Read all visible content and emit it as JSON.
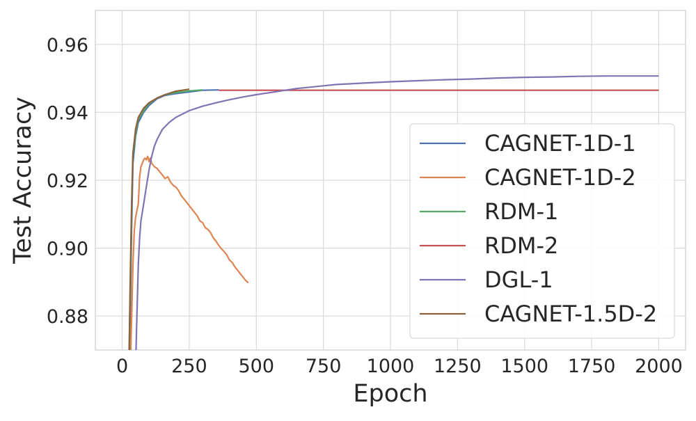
{
  "chart_data": {
    "type": "line",
    "title": "",
    "xlabel": "Epoch",
    "ylabel": "Test Accuracy",
    "xlim": [
      -100,
      2100
    ],
    "ylim": [
      0.87,
      0.97
    ],
    "x_ticks": [
      0,
      250,
      500,
      750,
      1000,
      1250,
      1500,
      1750,
      2000
    ],
    "y_ticks": [
      0.88,
      0.9,
      0.92,
      0.94,
      0.96
    ],
    "x_tick_labels": [
      "0",
      "250",
      "500",
      "750",
      "1000",
      "1250",
      "1500",
      "1750",
      "2000"
    ],
    "y_tick_labels": [
      "0.88",
      "0.90",
      "0.92",
      "0.94",
      "0.96"
    ],
    "grid": true,
    "legend_position": "center-right",
    "series": [
      {
        "name": "CAGNET-1D-1",
        "color": "#4c72b0",
        "x": [
          25,
          30,
          35,
          40,
          50,
          60,
          80,
          100,
          130,
          160,
          200,
          250,
          300,
          360
        ],
        "y": [
          0.865,
          0.88,
          0.905,
          0.925,
          0.933,
          0.937,
          0.94,
          0.942,
          0.944,
          0.945,
          0.9455,
          0.946,
          0.9465,
          0.9466
        ]
      },
      {
        "name": "CAGNET-1D-2",
        "color": "#dd8452",
        "x": [
          28,
          32,
          36,
          40,
          45,
          50,
          55,
          60,
          65,
          70,
          75,
          80,
          85,
          90,
          95,
          100,
          105,
          110,
          120,
          130,
          140,
          150,
          160,
          170,
          180,
          190,
          200,
          210,
          220,
          230,
          240,
          250,
          260,
          270,
          280,
          290,
          300,
          310,
          320,
          330,
          340,
          350,
          360,
          370,
          380,
          390,
          400,
          410,
          420,
          430,
          440,
          450,
          460,
          470
        ],
        "y": [
          0.865,
          0.87,
          0.882,
          0.895,
          0.905,
          0.909,
          0.911,
          0.913,
          0.921,
          0.924,
          0.925,
          0.926,
          0.9265,
          0.926,
          0.927,
          0.9255,
          0.9265,
          0.925,
          0.924,
          0.9235,
          0.9225,
          0.9215,
          0.9205,
          0.921,
          0.9195,
          0.9185,
          0.918,
          0.917,
          0.9155,
          0.9145,
          0.9135,
          0.9125,
          0.9115,
          0.9105,
          0.9095,
          0.908,
          0.9075,
          0.906,
          0.9055,
          0.9045,
          0.903,
          0.902,
          0.9008,
          0.8998,
          0.899,
          0.898,
          0.8965,
          0.8958,
          0.8945,
          0.8935,
          0.8925,
          0.8915,
          0.8905,
          0.8898
        ]
      },
      {
        "name": "RDM-1",
        "color": "#55a868",
        "x": [
          25,
          30,
          35,
          40,
          50,
          60,
          80,
          100,
          130,
          160,
          200,
          250,
          300
        ],
        "y": [
          0.865,
          0.885,
          0.91,
          0.927,
          0.934,
          0.938,
          0.9405,
          0.9425,
          0.9442,
          0.9452,
          0.9458,
          0.9463,
          0.9466
        ]
      },
      {
        "name": "RDM-2",
        "color": "#c44e52",
        "x": [
          360,
          500,
          750,
          1000,
          1250,
          1500,
          1750,
          2000
        ],
        "y": [
          0.9465,
          0.9465,
          0.9465,
          0.9465,
          0.9465,
          0.9465,
          0.9465,
          0.9465
        ]
      },
      {
        "name": "DGL-1",
        "color": "#8172b3",
        "x": [
          50,
          55,
          60,
          65,
          70,
          80,
          90,
          100,
          110,
          120,
          130,
          140,
          150,
          175,
          200,
          250,
          300,
          350,
          400,
          450,
          500,
          550,
          600,
          650,
          700,
          750,
          800,
          900,
          1000,
          1100,
          1200,
          1300,
          1400,
          1500,
          1600,
          1700,
          1800,
          1900,
          2000
        ],
        "y": [
          0.865,
          0.88,
          0.895,
          0.903,
          0.908,
          0.913,
          0.918,
          0.923,
          0.927,
          0.93,
          0.932,
          0.9335,
          0.935,
          0.937,
          0.9385,
          0.9405,
          0.9418,
          0.9428,
          0.9437,
          0.9445,
          0.9452,
          0.9458,
          0.9464,
          0.947,
          0.9474,
          0.9478,
          0.9482,
          0.9486,
          0.949,
          0.9493,
          0.9496,
          0.9498,
          0.9501,
          0.9503,
          0.9504,
          0.9506,
          0.9507,
          0.9507,
          0.9507
        ]
      },
      {
        "name": "CAGNET-1.5D-2",
        "color": "#8c613c",
        "x": [
          25,
          30,
          35,
          40,
          50,
          60,
          80,
          100,
          130,
          160,
          200,
          250
        ],
        "y": [
          0.865,
          0.89,
          0.912,
          0.928,
          0.935,
          0.9385,
          0.9412,
          0.9428,
          0.9442,
          0.9452,
          0.9462,
          0.9468
        ]
      }
    ]
  }
}
